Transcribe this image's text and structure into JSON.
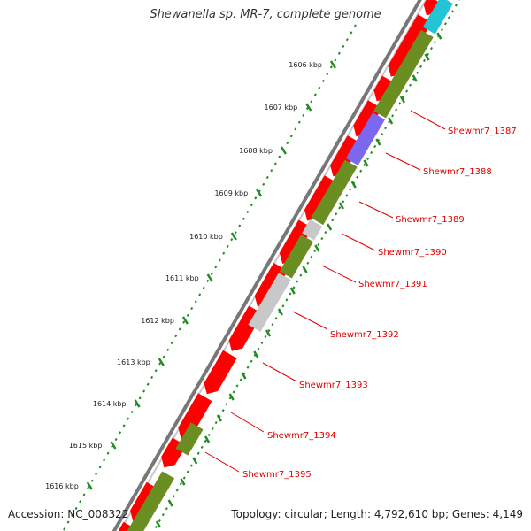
{
  "title": "Shewanella sp. MR-7, complete genome",
  "accession": "Accession: NC_008322",
  "topology": "Topology: circular; Length: 4,792,610 bp; Genes: 4,149",
  "colors": {
    "backbone_dark": "#777777",
    "backbone_light": "#c8c8c8",
    "forward_gene": "#ff0000",
    "reverse_gene_olive": "#6b8e23",
    "reverse_gene_gray": "#c8c8c8",
    "reverse_gene_purple": "#7b68ee",
    "reverse_gene_cyan": "#22c4d6",
    "ticks": "#228b22",
    "label": "#e00000"
  },
  "kbp_ticks": [
    "1606 kbp",
    "1607 kbp",
    "1608 kbp",
    "1609 kbp",
    "1610 kbp",
    "1611 kbp",
    "1612 kbp",
    "1613 kbp",
    "1614 kbp",
    "1615 kbp",
    "1616 kbp"
  ],
  "gene_labels": [
    "Shewmr7_1387",
    "Shewmr7_1388",
    "Shewmr7_1389",
    "Shewmr7_1390",
    "Shewmr7_1391",
    "Shewmr7_1392",
    "Shewmr7_1393",
    "Shewmr7_1394",
    "Shewmr7_1395"
  ],
  "reverse_gene_colors": [
    "cyan",
    "olive",
    "purple",
    "olive",
    "gray",
    "olive",
    "gray",
    "olive",
    "olive"
  ]
}
